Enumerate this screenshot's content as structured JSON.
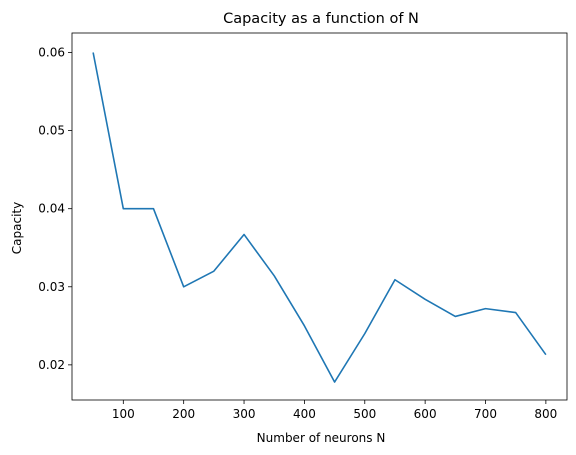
{
  "chart_data": {
    "type": "line",
    "title": "Capacity as a function of N",
    "xlabel": "Number of neurons N",
    "ylabel": "Capacity",
    "xlim": [
      15,
      835
    ],
    "ylim": [
      0.0155,
      0.0625
    ],
    "xticks": [
      100,
      200,
      300,
      400,
      500,
      600,
      700,
      800
    ],
    "xtick_labels": [
      "100",
      "200",
      "300",
      "400",
      "500",
      "600",
      "700",
      "800"
    ],
    "yticks": [
      0.02,
      0.03,
      0.04,
      0.05,
      0.06
    ],
    "ytick_labels": [
      "0.02",
      "0.03",
      "0.04",
      "0.05",
      "0.06"
    ],
    "grid": false,
    "series": [
      {
        "color": "#1f77b4",
        "x": [
          50,
          100,
          150,
          200,
          250,
          300,
          350,
          400,
          450,
          500,
          550,
          600,
          650,
          700,
          750,
          800
        ],
        "values": [
          0.06,
          0.04,
          0.04,
          0.03,
          0.032,
          0.0367,
          0.0314,
          0.025,
          0.0178,
          0.024,
          0.0309,
          0.0284,
          0.0262,
          0.0272,
          0.0267,
          0.0213
        ]
      }
    ]
  }
}
